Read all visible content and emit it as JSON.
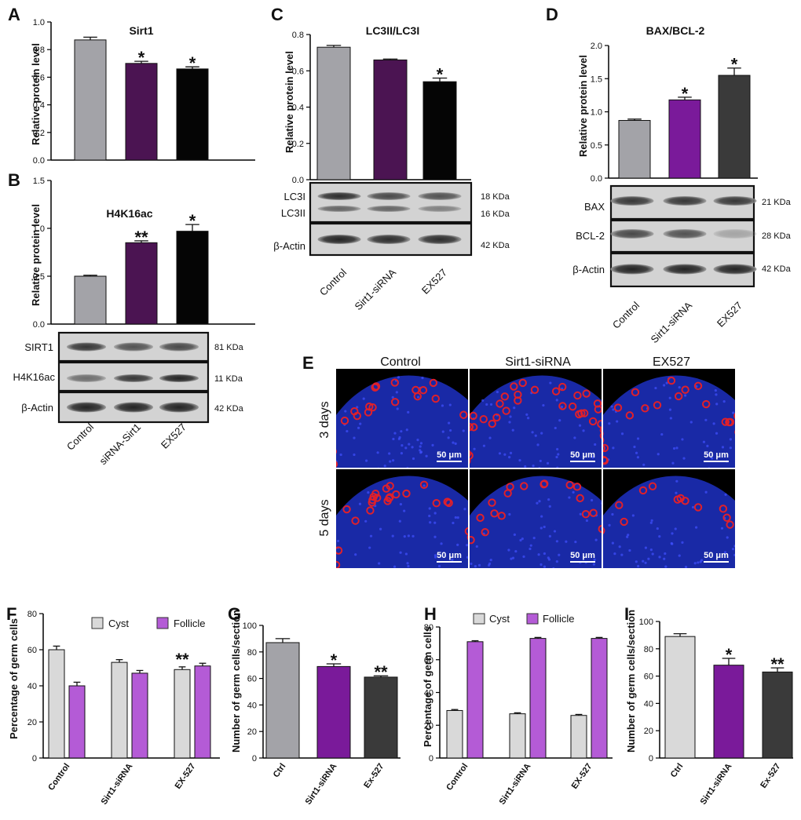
{
  "panels": {
    "A": {
      "letter": "A",
      "title": "Sirt1",
      "ylabel": "Relative protein level"
    },
    "B": {
      "letter": "B",
      "title": "H4K16ac",
      "ylabel": "Relative protein level",
      "blot_labels": [
        "SIRT1",
        "H4K16ac",
        "β-Actin"
      ],
      "kda": [
        "81 KDa",
        "11 KDa",
        "42 KDa"
      ],
      "categories": [
        "Control",
        "siRNA-Sirt1",
        "EX527"
      ]
    },
    "C": {
      "letter": "C",
      "title": "LC3II/LC3I",
      "ylabel": "Relative protein level",
      "blot_labels": [
        "LC3I",
        "LC3II",
        "β-Actin"
      ],
      "kda": [
        "18 KDa",
        "16 KDa",
        "42 KDa"
      ],
      "categories": [
        "Control",
        "Sirt1-siRNA",
        "EX527"
      ]
    },
    "D": {
      "letter": "D",
      "title": "BAX/BCL-2",
      "ylabel": "Relative protein level",
      "blot_labels": [
        "BAX",
        "BCL-2",
        "β-Actin"
      ],
      "kda": [
        "21 KDa",
        "28 KDa",
        "42 KDa"
      ],
      "categories": [
        "Control",
        "Sirt1-siRNA",
        "EX527"
      ]
    },
    "E": {
      "letter": "E",
      "columns": [
        "Control",
        "Sirt1-siRNA",
        "EX527"
      ],
      "rows": [
        "3 days",
        "5 days"
      ],
      "scale_bar": "50 μm"
    },
    "F": {
      "letter": "F",
      "ylabel": "Percentage of germ cells",
      "legend": [
        "Cyst",
        "Follicle"
      ]
    },
    "G": {
      "letter": "G",
      "ylabel": "Number of germ cells/section"
    },
    "H": {
      "letter": "H",
      "ylabel": "Percentage of germ cells",
      "legend": [
        "Cyst",
        "Follicle"
      ]
    },
    "I": {
      "letter": "I",
      "ylabel": "Number of germ cells/section"
    }
  },
  "colors": {
    "gray": "#a3a3a8",
    "purple": "#4b1452",
    "black": "#050505",
    "violet": "#7a1a9a",
    "darkgray": "#3a3a3a",
    "lightgray": "#d9d9d9",
    "lavender": "#b45bd6",
    "redcell": "#e0202a",
    "nucleus": "#1c2db8"
  },
  "chart_data": [
    {
      "id": "A",
      "type": "bar",
      "title": "Sirt1",
      "ylabel": "Relative protein level",
      "ylim": [
        0,
        1.0
      ],
      "yticks": [
        "0.0",
        "0.2",
        "0.4",
        "0.6",
        "0.8",
        "1.0"
      ],
      "categories": [
        "Control",
        "siRNA-Sirt1",
        "EX527"
      ],
      "values": [
        0.87,
        0.7,
        0.66
      ],
      "errors": [
        0.02,
        0.015,
        0.015
      ],
      "stars": [
        "",
        "*",
        "*"
      ]
    },
    {
      "id": "B",
      "type": "bar",
      "title": "H4K16ac",
      "ylabel": "Relative protein level",
      "ylim": [
        0,
        1.5
      ],
      "yticks": [
        "0.0",
        "0.5",
        "1.0",
        "1.5"
      ],
      "categories": [
        "Control",
        "siRNA-Sirt1",
        "EX527"
      ],
      "values": [
        0.5,
        0.85,
        0.97
      ],
      "errors": [
        0.01,
        0.02,
        0.07
      ],
      "stars": [
        "",
        "**",
        "*"
      ]
    },
    {
      "id": "C",
      "type": "bar",
      "title": "LC3II/LC3I",
      "ylabel": "Relative protein level",
      "ylim": [
        0,
        0.8
      ],
      "yticks": [
        "0.0",
        "0.2",
        "0.4",
        "0.6",
        "0.8"
      ],
      "categories": [
        "Control",
        "Sirt1-siRNA",
        "EX527"
      ],
      "values": [
        0.73,
        0.66,
        0.54
      ],
      "errors": [
        0.01,
        0.005,
        0.02
      ],
      "stars": [
        "",
        "",
        "*"
      ]
    },
    {
      "id": "D",
      "type": "bar",
      "title": "BAX/BCL-2",
      "ylabel": "Relative protein level",
      "ylim": [
        0,
        2.0
      ],
      "yticks": [
        "0.0",
        "0.5",
        "1.0",
        "1.5",
        "2.0"
      ],
      "categories": [
        "Control",
        "Sirt1-siRNA",
        "EX527"
      ],
      "values": [
        0.87,
        1.18,
        1.55
      ],
      "errors": [
        0.02,
        0.04,
        0.11
      ],
      "stars": [
        "",
        "*",
        "*"
      ]
    },
    {
      "id": "F",
      "type": "bar",
      "ylabel": "Percentage of germ cells",
      "ylim": [
        0,
        80
      ],
      "yticks": [
        "0",
        "20",
        "40",
        "60",
        "80"
      ],
      "categories": [
        "Control",
        "Sirt1-siRNA",
        "EX-527"
      ],
      "series": [
        {
          "name": "Cyst",
          "values": [
            60,
            53,
            49
          ],
          "errors": [
            2,
            1.5,
            1.5
          ]
        },
        {
          "name": "Follicle",
          "values": [
            40,
            47,
            51
          ],
          "errors": [
            2,
            1.5,
            1.5
          ]
        }
      ],
      "stars": [
        "",
        "",
        "**"
      ]
    },
    {
      "id": "G",
      "type": "bar",
      "ylabel": "Number of germ cells/section",
      "ylim": [
        0,
        100
      ],
      "yticks": [
        "0",
        "20",
        "40",
        "60",
        "80",
        "100"
      ],
      "categories": [
        "Ctrl",
        "Sirt1-siRNA",
        "Ex-527"
      ],
      "values": [
        87,
        69,
        61
      ],
      "errors": [
        3,
        2,
        1
      ],
      "stars": [
        "",
        "*",
        "**"
      ]
    },
    {
      "id": "H",
      "type": "bar",
      "ylabel": "Percentage of germ cells",
      "ylim": [
        0,
        80
      ],
      "yticks": [
        "0",
        "20",
        "40",
        "60",
        "80"
      ],
      "categories": [
        "Control",
        "Sirt1-siRNA",
        "EX-527"
      ],
      "series": [
        {
          "name": "Cyst",
          "values": [
            29,
            27,
            26
          ],
          "errors": [
            0.6,
            0.6,
            0.6
          ]
        },
        {
          "name": "Follicle",
          "values": [
            71,
            73,
            73
          ],
          "errors": [
            0.6,
            0.6,
            0.6
          ]
        }
      ]
    },
    {
      "id": "I",
      "type": "bar",
      "ylabel": "Number of germ cells/section",
      "ylim": [
        0,
        100
      ],
      "yticks": [
        "0",
        "20",
        "40",
        "60",
        "80",
        "100"
      ],
      "categories": [
        "Ctrl",
        "Sirt1-siRNA",
        "Ex-527"
      ],
      "values": [
        89,
        68,
        63
      ],
      "errors": [
        2,
        5,
        3
      ],
      "stars": [
        "",
        "*",
        "**"
      ]
    }
  ]
}
